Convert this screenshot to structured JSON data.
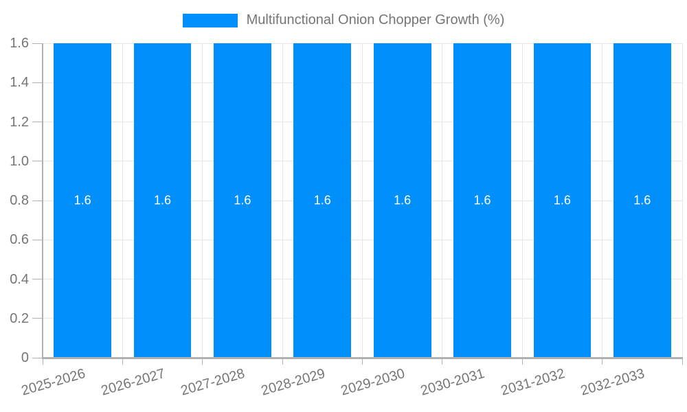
{
  "legend": {
    "label": "Multifunctional Onion Chopper Growth (%)"
  },
  "colors": {
    "bar": "#008FFB",
    "axis_text": "#757575",
    "grid_line": "#e6e6e6",
    "axis_line": "#b0b0b0",
    "value_label": "#ffffff"
  },
  "chart_data": {
    "type": "bar",
    "title": "Multifunctional Onion Chopper Growth (%)",
    "categories": [
      "2025-2026",
      "2026-2027",
      "2027-2028",
      "2028-2029",
      "2029-2030",
      "2030-2031",
      "2031-2032",
      "2032-2033"
    ],
    "values": [
      1.6,
      1.6,
      1.6,
      1.6,
      1.6,
      1.6,
      1.6,
      1.6
    ],
    "value_labels": [
      "1.6",
      "1.6",
      "1.6",
      "1.6",
      "1.6",
      "1.6",
      "1.6",
      "1.6"
    ],
    "xlabel": "",
    "ylabel": "",
    "ylim": [
      0,
      1.6
    ],
    "ytick_step": 0.2,
    "ytick_labels": [
      "0",
      "0.2",
      "0.4",
      "0.6",
      "0.8",
      "1.0",
      "1.2",
      "1.4",
      "1.6"
    ],
    "grid": true,
    "legend_position": "top",
    "bar_value_labels_inside": true,
    "x_label_rotation_deg": -16
  }
}
